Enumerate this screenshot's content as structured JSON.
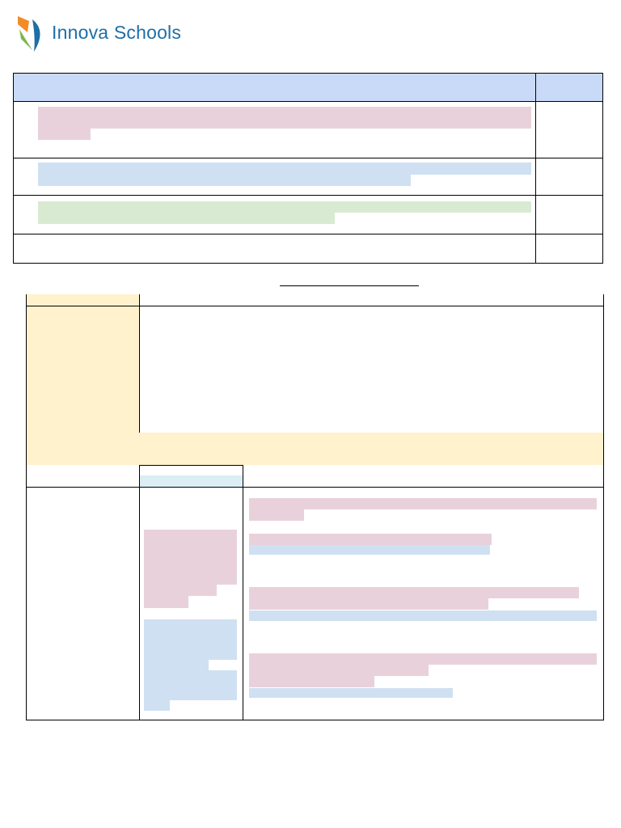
{
  "header": {
    "logo_text": "Innova Schools",
    "logo_colors": {
      "orange": "#f28c28",
      "green": "#7ab648",
      "blue": "#1f6ea6"
    }
  },
  "colors": {
    "header_band": "#c9daf8",
    "highlight_pink": "#e9d1dc",
    "highlight_blue": "#cfe0f2",
    "highlight_green": "#d9ead3",
    "highlight_yellow": "#fff2cc",
    "subheader_cyan": "#daeef3"
  }
}
